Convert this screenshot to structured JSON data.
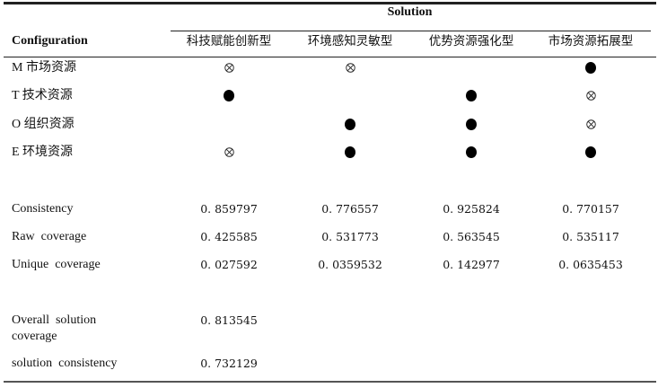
{
  "table": {
    "solution_header": "Solution",
    "config_header": "Configuration",
    "columns": [
      "科技赋能创新型",
      "环境感知灵敏型",
      "优势资源强化型",
      "市场资源拓展型"
    ],
    "legend_symbols": {
      "present": "filled-circle",
      "absent": "circled-cross",
      "blank": "don't care"
    },
    "conditions": [
      {
        "label": "M 市场资源",
        "cells": [
          "absent",
          "absent",
          "blank",
          "present"
        ]
      },
      {
        "label": "T 技术资源",
        "cells": [
          "present",
          "blank",
          "present",
          "absent"
        ]
      },
      {
        "label": "O 组织资源",
        "cells": [
          "blank",
          "present",
          "present",
          "absent"
        ]
      },
      {
        "label": "E 环境资源",
        "cells": [
          "absent",
          "present",
          "present",
          "present"
        ]
      }
    ],
    "stats": [
      {
        "label": "Consistency",
        "values": [
          "0. 859797",
          "0. 776557",
          "0. 925824",
          "0. 770157"
        ]
      },
      {
        "label": "Raw  coverage",
        "values": [
          "0. 425585",
          "0. 531773",
          "0. 563545",
          "0. 535117"
        ]
      },
      {
        "label": "Unique  coverage",
        "values": [
          "0. 027592",
          "0. 0359532",
          "0. 142977",
          "0. 0635453"
        ]
      }
    ],
    "overall": {
      "coverage_label_1": "Overall  solution",
      "coverage_label_2": "coverage",
      "coverage_value": "0. 813545",
      "consistency_label": "solution  consistency",
      "consistency_value": "0. 732129"
    }
  }
}
